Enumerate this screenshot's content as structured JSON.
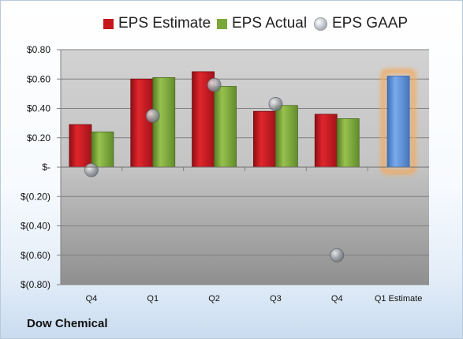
{
  "company": "Dow Chemical",
  "legend": {
    "estimate": "EPS Estimate",
    "actual": "EPS Actual",
    "gaap": "EPS GAAP"
  },
  "colors": {
    "estimate": "#c8161d",
    "actual": "#7aa73a",
    "gaap": "#b4b8bd",
    "forecast": "#5b8fd6",
    "highlight": "#f4a95a"
  },
  "chart_data": {
    "type": "bar",
    "categories": [
      "Q4",
      "Q1",
      "Q2",
      "Q3",
      "Q4",
      "Q1 Estimate"
    ],
    "series": [
      {
        "name": "EPS Estimate",
        "values": [
          0.29,
          0.6,
          0.65,
          0.38,
          0.36,
          null
        ]
      },
      {
        "name": "EPS Actual",
        "values": [
          0.24,
          0.61,
          0.55,
          0.42,
          0.33,
          0.62
        ]
      },
      {
        "name": "EPS GAAP",
        "values": [
          -0.02,
          0.35,
          0.56,
          0.43,
          -0.6,
          null
        ]
      }
    ],
    "ylim": [
      -0.8,
      0.8
    ],
    "yticks": [
      0.8,
      0.6,
      0.4,
      0.2,
      0,
      -0.2,
      -0.4,
      -0.6,
      -0.8
    ],
    "ytick_labels": [
      "$0.80",
      "$0.60",
      "$0.40",
      "$0.20",
      "$-",
      "$(0.20)",
      "$(0.40)",
      "$(0.60)",
      "$(0.80)"
    ],
    "grid": true,
    "legend_position": "top"
  }
}
